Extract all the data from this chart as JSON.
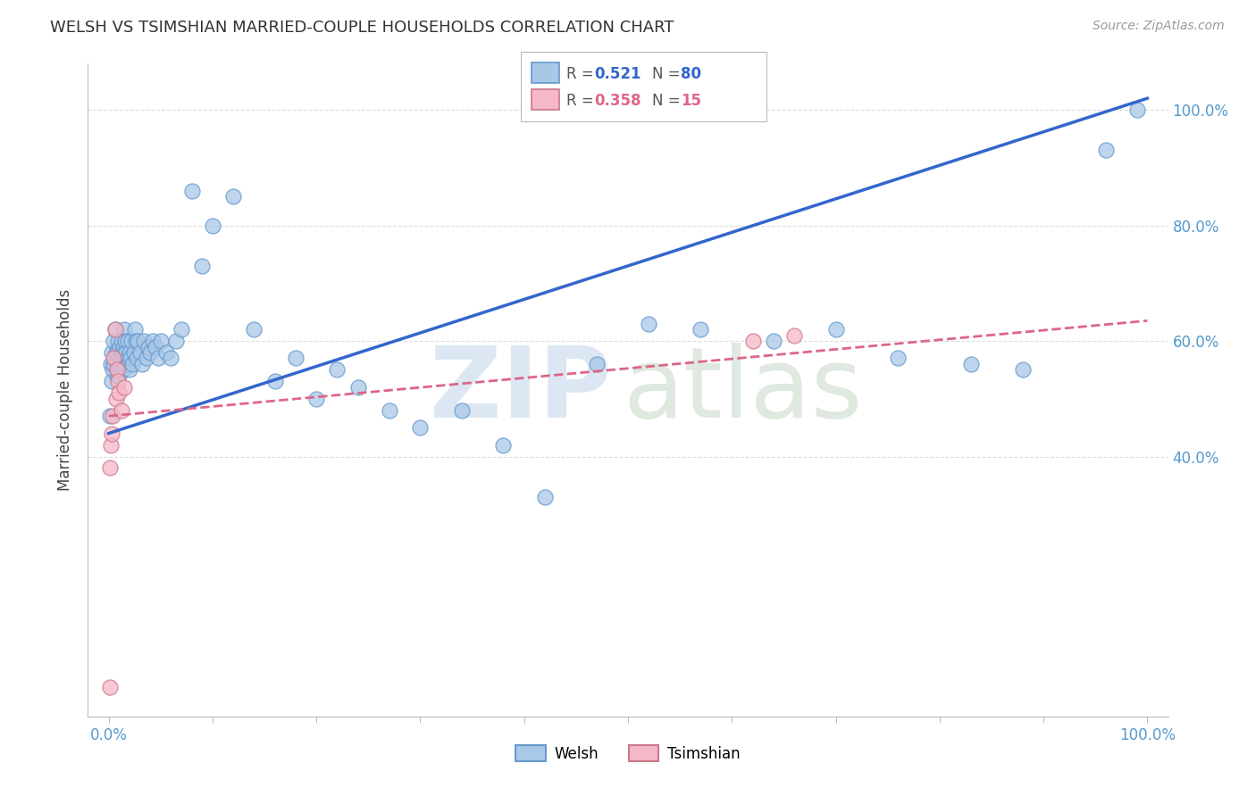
{
  "title": "WELSH VS TSIMSHIAN MARRIED-COUPLE HOUSEHOLDS CORRELATION CHART",
  "source": "Source: ZipAtlas.com",
  "ylabel": "Married-couple Households",
  "y_tick_vals": [
    0.4,
    0.6,
    0.8,
    1.0
  ],
  "y_tick_labels": [
    "40.0%",
    "60.0%",
    "80.0%",
    "100.0%"
  ],
  "xlim": [
    -0.02,
    1.02
  ],
  "ylim": [
    -0.05,
    1.08
  ],
  "welsh_R": "0.521",
  "welsh_N": "80",
  "tsimshian_R": "0.358",
  "tsimshian_N": "15",
  "welsh_dot_color": "#a8c8e8",
  "welsh_dot_edge": "#6699cc",
  "welsh_line_color": "#3366cc",
  "tsimshian_dot_color": "#f5b8c8",
  "tsimshian_dot_edge": "#cc7788",
  "tsimshian_line_color": "#dd6688",
  "tick_label_color": "#5599cc",
  "grid_color": "#dddddd",
  "legend_welsh_label": "Welsh",
  "legend_tsimshian_label": "Tsimshian",
  "welsh_line_x0": 0.0,
  "welsh_line_y0": 0.44,
  "welsh_line_x1": 1.0,
  "welsh_line_y1": 1.02,
  "tsimshian_line_x0": 0.0,
  "tsimshian_line_y0": 0.47,
  "tsimshian_line_x1": 1.0,
  "tsimshian_line_y1": 0.635,
  "welsh_x": [
    0.001,
    0.002,
    0.003,
    0.003,
    0.004,
    0.005,
    0.005,
    0.006,
    0.006,
    0.007,
    0.008,
    0.008,
    0.009,
    0.01,
    0.01,
    0.011,
    0.011,
    0.012,
    0.012,
    0.013,
    0.013,
    0.014,
    0.014,
    0.015,
    0.015,
    0.016,
    0.016,
    0.017,
    0.018,
    0.018,
    0.019,
    0.02,
    0.02,
    0.021,
    0.022,
    0.023,
    0.024,
    0.025,
    0.026,
    0.027,
    0.028,
    0.03,
    0.032,
    0.034,
    0.036,
    0.038,
    0.04,
    0.042,
    0.045,
    0.048,
    0.05,
    0.055,
    0.06,
    0.065,
    0.07,
    0.08,
    0.09,
    0.1,
    0.12,
    0.14,
    0.16,
    0.18,
    0.2,
    0.22,
    0.24,
    0.27,
    0.3,
    0.34,
    0.38,
    0.42,
    0.47,
    0.52,
    0.57,
    0.64,
    0.7,
    0.76,
    0.83,
    0.88,
    0.96,
    0.99
  ],
  "welsh_y": [
    0.47,
    0.56,
    0.58,
    0.53,
    0.55,
    0.6,
    0.56,
    0.62,
    0.57,
    0.58,
    0.58,
    0.54,
    0.6,
    0.57,
    0.54,
    0.59,
    0.56,
    0.6,
    0.57,
    0.56,
    0.58,
    0.59,
    0.55,
    0.62,
    0.58,
    0.6,
    0.56,
    0.58,
    0.6,
    0.57,
    0.56,
    0.58,
    0.55,
    0.57,
    0.6,
    0.56,
    0.58,
    0.62,
    0.6,
    0.57,
    0.6,
    0.58,
    0.56,
    0.6,
    0.57,
    0.59,
    0.58,
    0.6,
    0.59,
    0.57,
    0.6,
    0.58,
    0.57,
    0.6,
    0.62,
    0.86,
    0.73,
    0.8,
    0.85,
    0.62,
    0.53,
    0.57,
    0.5,
    0.55,
    0.52,
    0.48,
    0.45,
    0.48,
    0.42,
    0.33,
    0.56,
    0.63,
    0.62,
    0.6,
    0.62,
    0.57,
    0.56,
    0.55,
    0.93,
    1.0
  ],
  "tsimshian_x": [
    0.001,
    0.002,
    0.003,
    0.004,
    0.005,
    0.006,
    0.007,
    0.008,
    0.009,
    0.01,
    0.012,
    0.015,
    0.62,
    0.66,
    0.001
  ],
  "tsimshian_y": [
    0.0,
    0.42,
    0.44,
    0.47,
    0.57,
    0.62,
    0.5,
    0.55,
    0.53,
    0.51,
    0.48,
    0.52,
    0.6,
    0.61,
    0.38
  ]
}
